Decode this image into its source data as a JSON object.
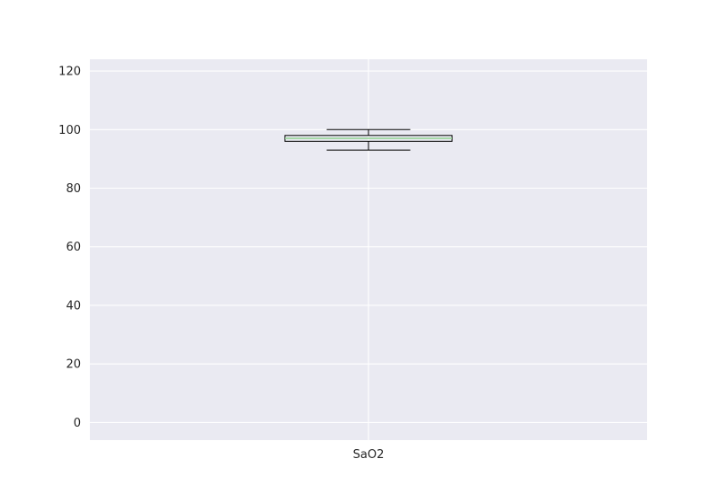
{
  "chart_data": {
    "type": "box",
    "title": "",
    "xlabel": "",
    "ylabel": "",
    "categories": [
      "SaO2"
    ],
    "ylim": [
      -6,
      124
    ],
    "yticks": [
      0,
      20,
      40,
      60,
      80,
      100,
      120
    ],
    "grid": true,
    "boxes": [
      {
        "label": "SaO2",
        "whisker_low": 93,
        "q1": 96,
        "median": 97,
        "q3": 98,
        "whisker_high": 100
      }
    ],
    "colors": {
      "plot_background": "#eaeaf2",
      "grid": "#ffffff",
      "box_edge": "#000000",
      "median": "#8fd18f",
      "text": "#262626"
    }
  }
}
